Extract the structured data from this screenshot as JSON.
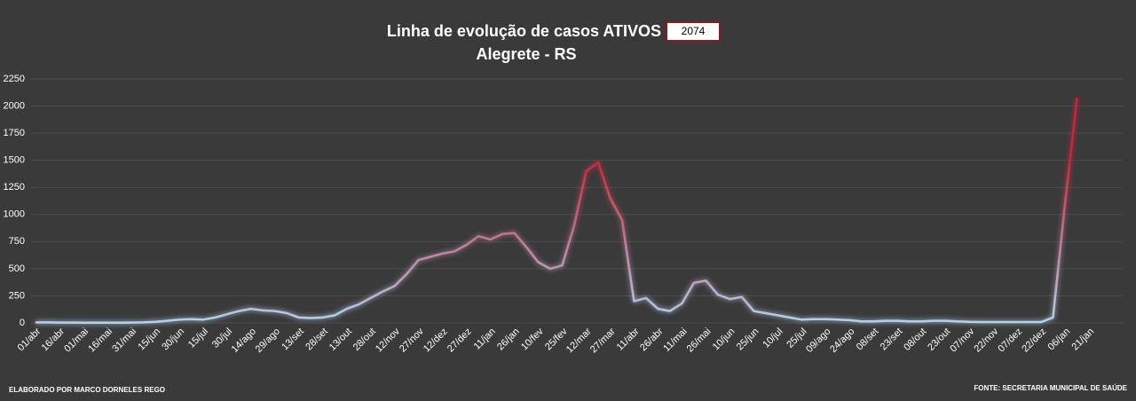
{
  "chart_data": {
    "type": "line",
    "title": "Linha de evolução de casos ATIVOS",
    "current_value": 2074,
    "subtitle": "Alegrete - RS",
    "credit": "ELABORADO POR MARCO DORNELES REGO",
    "source": "FONTE: SECRETARIA MUNICIPAL DE SAÚDE",
    "categories": [
      "01/abr",
      null,
      "16/abr",
      null,
      "01/mai",
      null,
      "16/mai",
      null,
      "31/mai",
      null,
      "15/jun",
      null,
      "30/jun",
      null,
      "15/jul",
      null,
      "30/jul",
      null,
      "14/ago",
      null,
      "29/ago",
      null,
      "13/set",
      null,
      "28/set",
      null,
      "13/out",
      null,
      "28/out",
      null,
      "12/nov",
      null,
      "27/nov",
      null,
      "12/dez",
      null,
      "27/dez",
      null,
      "11/jan",
      null,
      "26/jan",
      null,
      "10/fev",
      null,
      "25/fev",
      null,
      "12/mar",
      null,
      "27/mar",
      null,
      "11/abr",
      null,
      "26/abr",
      null,
      "11/mai",
      null,
      "26/mai",
      null,
      "10/jun",
      null,
      "25/jun",
      null,
      "10/jul",
      null,
      "25/jul",
      null,
      "09/ago",
      null,
      "24/ago",
      null,
      "08/set",
      null,
      "23/set",
      null,
      "08/out",
      null,
      "23/out",
      null,
      "07/nov",
      null,
      "22/nov",
      null,
      "07/dez",
      null,
      "22/dez",
      null,
      "06/jan",
      null,
      "21/jan"
    ],
    "values": [
      5,
      5,
      3,
      3,
      2,
      2,
      2,
      2,
      3,
      5,
      10,
      20,
      30,
      35,
      30,
      50,
      80,
      110,
      130,
      115,
      110,
      90,
      50,
      45,
      50,
      70,
      130,
      170,
      230,
      290,
      340,
      450,
      580,
      610,
      640,
      660,
      720,
      800,
      770,
      820,
      830,
      700,
      560,
      500,
      530,
      900,
      1400,
      1480,
      1150,
      950,
      200,
      230,
      130,
      110,
      180,
      370,
      390,
      260,
      220,
      240,
      110,
      90,
      70,
      50,
      30,
      35,
      35,
      30,
      25,
      15,
      15,
      20,
      20,
      15,
      15,
      20,
      20,
      15,
      10,
      8,
      8,
      8,
      8,
      8,
      8,
      50,
      1100,
      2074,
      null
    ],
    "color_low": "#b4d2ee",
    "color_high": "#c8283c",
    "ylim": [
      0,
      2250
    ],
    "yticks": [
      0,
      250,
      500,
      750,
      1000,
      1250,
      1500,
      1750,
      2000,
      2250
    ],
    "grid": true
  }
}
